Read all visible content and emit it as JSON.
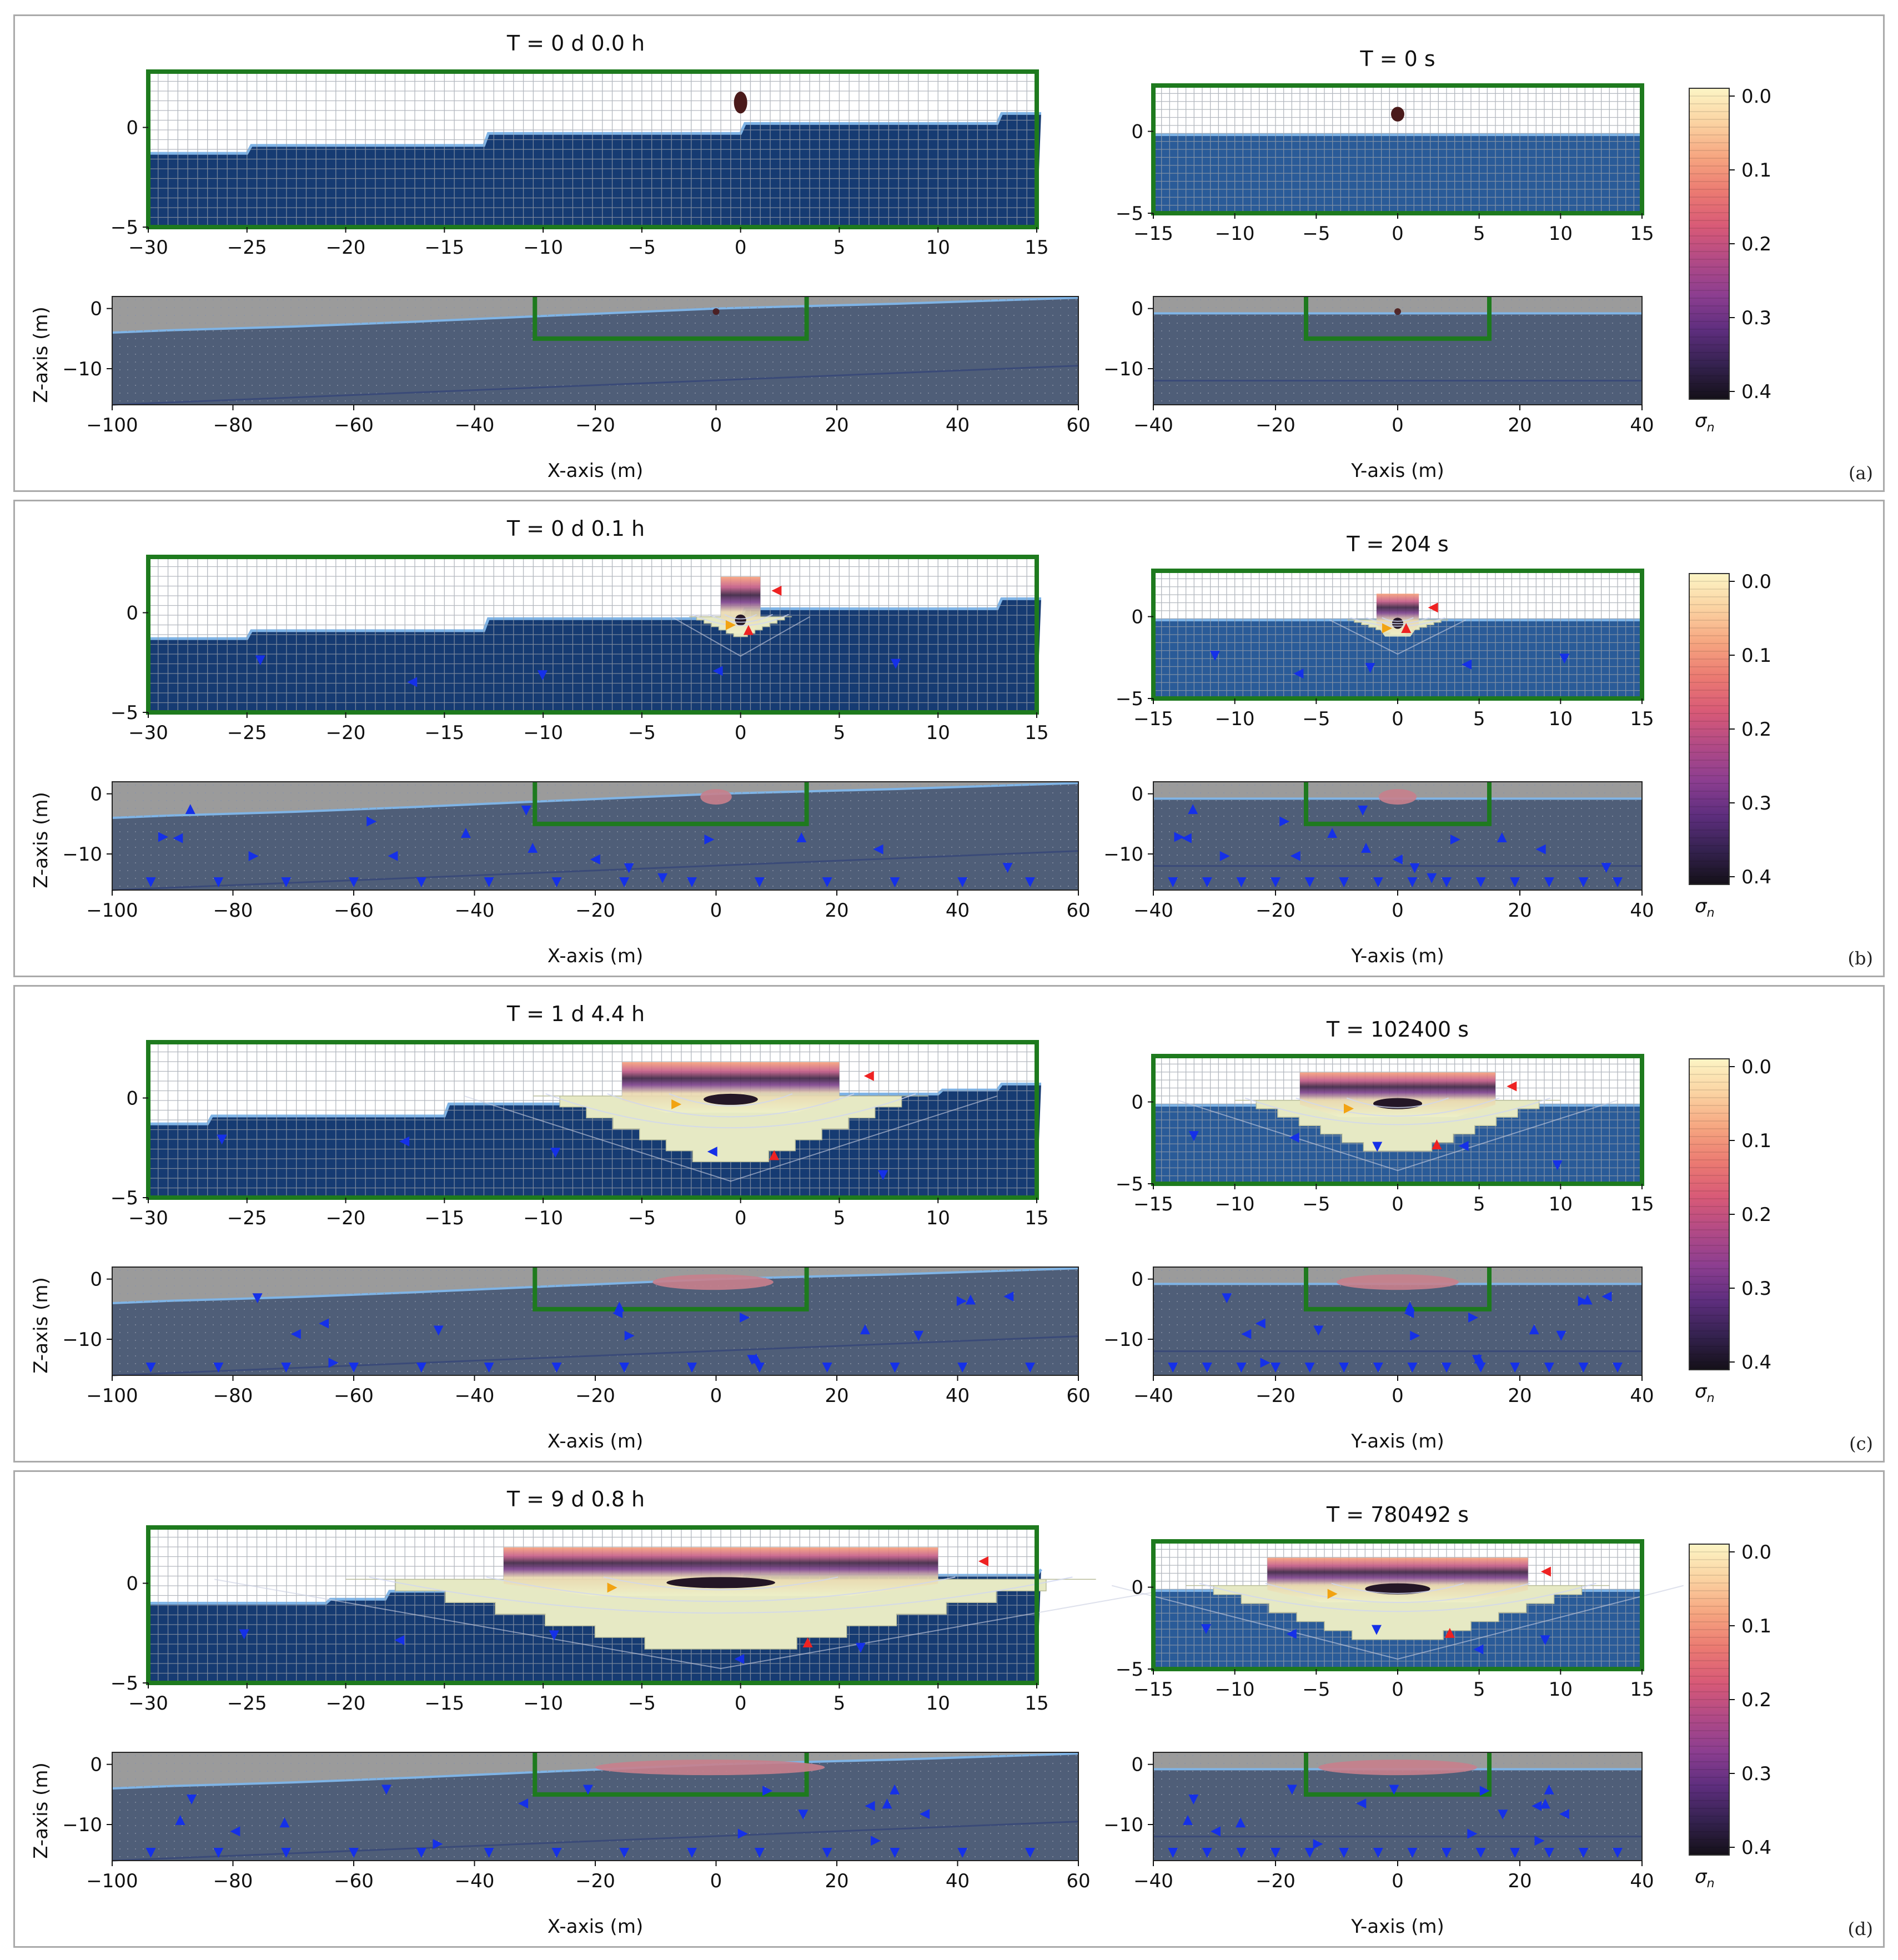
{
  "colors": {
    "frame_green": "#1e7a1e",
    "air_cell": "#ffffff",
    "air_grid": "#9aa0aa",
    "water_dark": "#163b72",
    "water_light": "#2a5b98",
    "surface_line": "#7fb4e6",
    "overview_water": "#4f5e78",
    "overview_air": "#9b9b9b",
    "arrow_blue": "#1530e8",
    "arrow_red": "#ee2222",
    "arrow_orange": "#f2a312",
    "droplet": "#4a1a1a"
  },
  "colorbar": {
    "label": "σ",
    "label_sub": "n",
    "ticks": [
      "0.0",
      "0.1",
      "0.2",
      "0.3",
      "0.4"
    ],
    "tick_values": [
      0.0,
      0.1,
      0.2,
      0.3,
      0.4
    ],
    "range": [
      0.0,
      0.4
    ],
    "stops": [
      "#fcf5c5",
      "#fbd3a2",
      "#f6a580",
      "#eb7a72",
      "#d85a77",
      "#b14a86",
      "#8c3e90",
      "#5e2e7e",
      "#352250",
      "#141018"
    ]
  },
  "chart_data": [
    {
      "panel": "(a)",
      "type": "heatmap",
      "title_x": "T = 0 d  0.0 h",
      "title_y": "T = 0 s",
      "time_hours": 0.0,
      "time_seconds": 0,
      "x_ticks": [
        "−30",
        "−25",
        "−20",
        "−15",
        "−10",
        "−5",
        "0",
        "5",
        "10",
        "15"
      ],
      "z_ticks": [
        "0",
        "−5"
      ],
      "y_ticks": [
        "−15",
        "−10",
        "−5",
        "0",
        "5",
        "10",
        "15"
      ],
      "ov_x_ticks": [
        "−100",
        "−80",
        "−60",
        "−40",
        "−20",
        "0",
        "20",
        "40",
        "60"
      ],
      "ov_y_ticks": [
        "−40",
        "−20",
        "0",
        "20",
        "40"
      ],
      "ov_z_ticks": [
        "0",
        "−10"
      ],
      "xlabel": "X-axis (m)",
      "ylabel_overview": "Y-axis (m)",
      "zlabel": "Z-axis (m)",
      "xlim": [
        -30,
        15
      ],
      "ylim": [
        -15,
        15
      ],
      "zlim": [
        -5,
        2.8
      ],
      "ov_xlim": [
        -100,
        60
      ],
      "ov_ylim": [
        -40,
        40
      ],
      "ov_zlim": [
        -16,
        2
      ],
      "water_surface_x": [
        [
          -30,
          -1.3
        ],
        [
          -25,
          -0.9
        ],
        [
          -13,
          -0.3
        ],
        [
          0,
          0.2
        ],
        [
          13,
          0.7
        ],
        [
          15,
          0.7
        ]
      ],
      "water_surface_y": -0.2,
      "plume_x": {
        "center": 0,
        "z_top": 1.8,
        "z_bottom": 0.7,
        "half_width": 0.3,
        "spread_z": 0,
        "spread_half_width": 0
      },
      "plume_y": {
        "center": 0,
        "z_top": 1.5,
        "z_bottom": 0.6,
        "half_width": 0.3,
        "spread_z": 0,
        "spread_half_width": 0
      }
    },
    {
      "panel": "(b)",
      "type": "heatmap",
      "title_x": "T = 0 d  0.1 h",
      "title_y": "T = 204 s",
      "time_hours": 0.1,
      "time_seconds": 204,
      "x_ticks": [
        "−30",
        "−25",
        "−20",
        "−15",
        "−10",
        "−5",
        "0",
        "5",
        "10",
        "15"
      ],
      "z_ticks": [
        "0",
        "−5"
      ],
      "y_ticks": [
        "−15",
        "−10",
        "−5",
        "0",
        "5",
        "10",
        "15"
      ],
      "ov_x_ticks": [
        "−100",
        "−80",
        "−60",
        "−40",
        "−20",
        "0",
        "20",
        "40",
        "60"
      ],
      "ov_y_ticks": [
        "−40",
        "−20",
        "0",
        "20",
        "40"
      ],
      "ov_z_ticks": [
        "0",
        "−10"
      ],
      "xlabel": "X-axis (m)",
      "ylabel_overview": "Y-axis (m)",
      "zlabel": "Z-axis (m)",
      "xlim": [
        -30,
        15
      ],
      "ylim": [
        -15,
        15
      ],
      "zlim": [
        -5,
        2.8
      ],
      "ov_xlim": [
        -100,
        60
      ],
      "ov_ylim": [
        -40,
        40
      ],
      "ov_zlim": [
        -16,
        2
      ],
      "water_surface_x": [
        [
          -30,
          -1.3
        ],
        [
          -25,
          -0.9
        ],
        [
          -13,
          -0.3
        ],
        [
          0,
          0.2
        ],
        [
          13,
          0.7
        ],
        [
          15,
          0.7
        ]
      ],
      "water_surface_y": -0.2,
      "plume_x": {
        "center": 0,
        "z_top": 1.8,
        "z_bottom": -1.2,
        "half_width": 1.0,
        "spread_z": -0.2,
        "spread_half_width": 1.6
      },
      "plume_y": {
        "center": 0,
        "z_top": 1.4,
        "z_bottom": -1.1,
        "half_width": 1.3,
        "spread_z": -0.2,
        "spread_half_width": 1.8
      }
    },
    {
      "panel": "(c)",
      "type": "heatmap",
      "title_x": "T = 1 d  4.4 h",
      "title_y": "T = 102400 s",
      "time_hours": 28.4,
      "time_seconds": 102400,
      "x_ticks": [
        "−30",
        "−25",
        "−20",
        "−15",
        "−10",
        "−5",
        "0",
        "5",
        "10",
        "15"
      ],
      "z_ticks": [
        "0",
        "−5"
      ],
      "y_ticks": [
        "−15",
        "−10",
        "−5",
        "0",
        "5",
        "10",
        "15"
      ],
      "ov_x_ticks": [
        "−100",
        "−80",
        "−60",
        "−40",
        "−20",
        "0",
        "20",
        "40",
        "60"
      ],
      "ov_y_ticks": [
        "−40",
        "−20",
        "0",
        "20",
        "40"
      ],
      "ov_z_ticks": [
        "0",
        "−10"
      ],
      "xlabel": "X-axis (m)",
      "ylabel_overview": "Y-axis (m)",
      "zlabel": "Z-axis (m)",
      "xlim": [
        -30,
        15
      ],
      "ylim": [
        -15,
        15
      ],
      "zlim": [
        -5,
        2.8
      ],
      "ov_xlim": [
        -100,
        60
      ],
      "ov_ylim": [
        -40,
        40
      ],
      "ov_zlim": [
        -16,
        2
      ],
      "water_surface_x": [
        [
          -30,
          -1.3
        ],
        [
          -27,
          -0.9
        ],
        [
          -15,
          -0.3
        ],
        [
          0,
          0.2
        ],
        [
          10,
          0.4
        ],
        [
          13,
          0.7
        ],
        [
          15,
          0.7
        ]
      ],
      "water_surface_y": -0.2,
      "plume_x": {
        "center": -0.5,
        "z_top": 1.8,
        "z_bottom": -3.2,
        "half_width": 5.5,
        "spread_z": 0.1,
        "spread_half_width": 4.5
      },
      "plume_y": {
        "center": 0,
        "z_top": 1.8,
        "z_bottom": -3.0,
        "half_width": 6.0,
        "spread_z": 0.1,
        "spread_half_width": 4.0
      }
    },
    {
      "panel": "(d)",
      "type": "heatmap",
      "title_x": "T = 9 d  0.8 h",
      "title_y": "T = 780492 s",
      "time_hours": 216.8,
      "time_seconds": 780492,
      "x_ticks": [
        "−30",
        "−25",
        "−20",
        "−15",
        "−10",
        "−5",
        "0",
        "5",
        "10",
        "15"
      ],
      "z_ticks": [
        "0",
        "−5"
      ],
      "y_ticks": [
        "−15",
        "−10",
        "−5",
        "0",
        "5",
        "10",
        "15"
      ],
      "ov_x_ticks": [
        "−100",
        "−80",
        "−60",
        "−40",
        "−20",
        "0",
        "20",
        "40",
        "60"
      ],
      "ov_y_ticks": [
        "−40",
        "−20",
        "0",
        "20",
        "40"
      ],
      "ov_z_ticks": [
        "0",
        "−10"
      ],
      "xlabel": "X-axis (m)",
      "ylabel_overview": "Y-axis (m)",
      "zlabel": "Z-axis (m)",
      "xlim": [
        -30,
        15
      ],
      "ylim": [
        -15,
        15
      ],
      "zlim": [
        -5,
        2.8
      ],
      "ov_xlim": [
        -100,
        60
      ],
      "ov_ylim": [
        -40,
        40
      ],
      "ov_zlim": [
        -16,
        2
      ],
      "water_surface_x": [
        [
          -30,
          -1.0
        ],
        [
          -21,
          -0.8
        ],
        [
          -18,
          -0.4
        ],
        [
          -5,
          -0.1
        ],
        [
          0,
          0.4
        ],
        [
          15,
          0.7
        ]
      ],
      "water_surface_y": -0.2,
      "plume_x": {
        "center": -1,
        "z_top": 1.8,
        "z_bottom": -3.3,
        "half_width": 11.0,
        "spread_z": 0.2,
        "spread_half_width": 8.0
      },
      "plume_y": {
        "center": 0,
        "z_top": 1.8,
        "z_bottom": -3.2,
        "half_width": 8.0,
        "spread_z": 0.1,
        "spread_half_width": 5.0
      }
    }
  ]
}
